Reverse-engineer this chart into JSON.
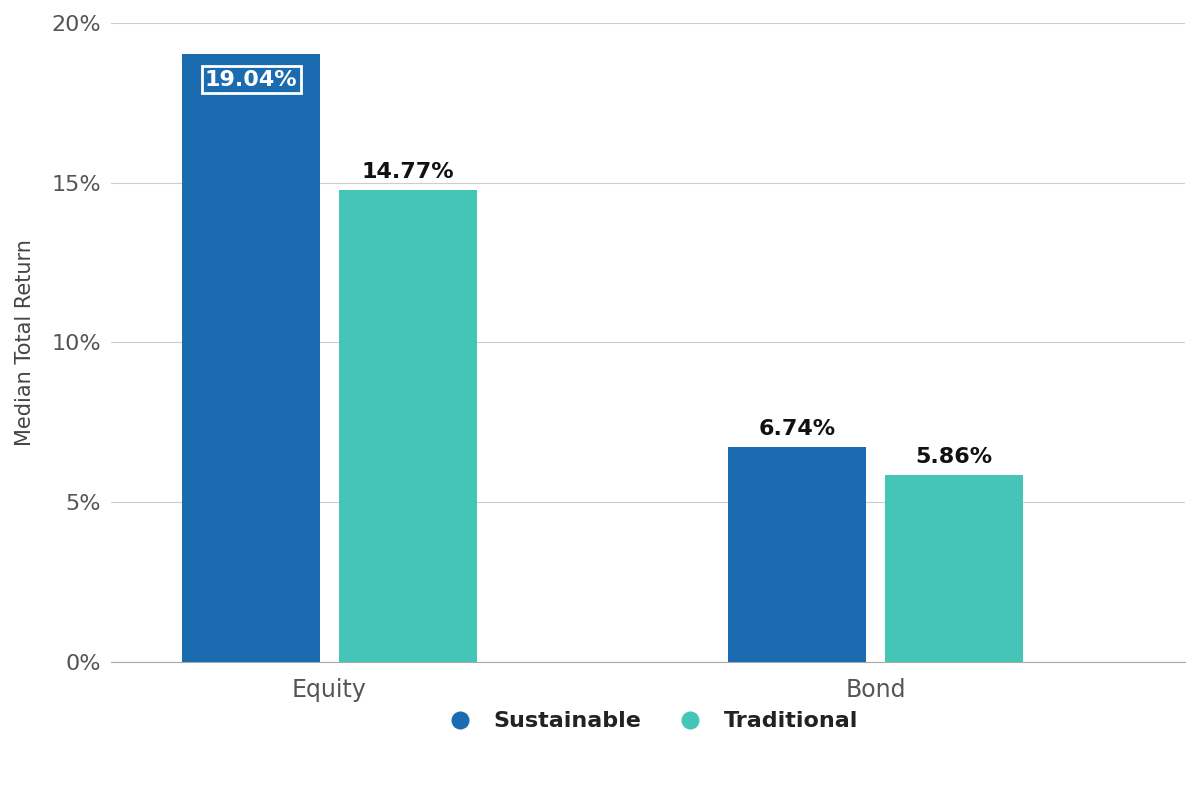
{
  "categories": [
    "Equity",
    "Bond"
  ],
  "sustainable_values": [
    19.04,
    6.74
  ],
  "traditional_values": [
    14.77,
    5.86
  ],
  "sustainable_labels": [
    "19.04%",
    "6.74%"
  ],
  "traditional_labels": [
    "14.77%",
    "5.86%"
  ],
  "sustainable_color": "#1B6BB0",
  "traditional_color": "#45C4B8",
  "ylabel": "Median Total Return",
  "ylim": [
    0,
    20
  ],
  "yticks": [
    0,
    5,
    10,
    15,
    20
  ],
  "ytick_labels": [
    "0%",
    "5%",
    "10%",
    "15%",
    "20%"
  ],
  "bar_width": 0.38,
  "legend_labels": [
    "Sustainable",
    "Traditional"
  ],
  "background_color": "#ffffff",
  "label_fontsize": 16,
  "axis_fontsize": 15,
  "tick_fontsize": 16,
  "legend_fontsize": 16,
  "group_centers": [
    0.5,
    2.0
  ],
  "xlim": [
    -0.1,
    2.85
  ]
}
